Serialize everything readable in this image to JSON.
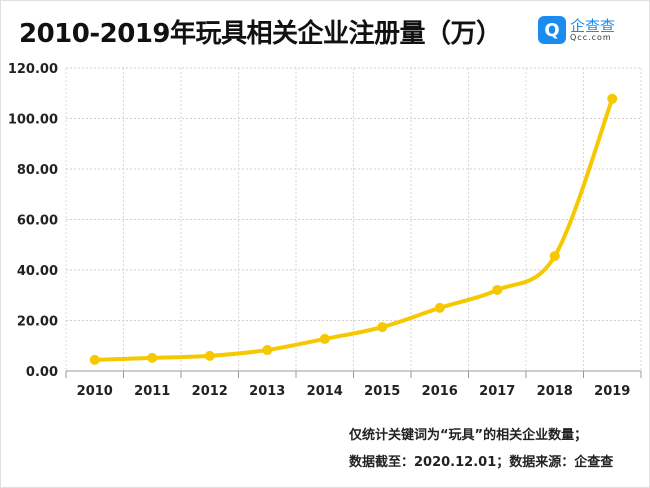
{
  "chart_data": {
    "type": "line",
    "title": "2010-2019年玩具相关企业注册量（万）",
    "categories": [
      "2010",
      "2011",
      "2012",
      "2013",
      "2014",
      "2015",
      "2016",
      "2017",
      "2018",
      "2019"
    ],
    "values": [
      4.4,
      5.2,
      6.0,
      8.3,
      12.7,
      17.4,
      25.0,
      32.1,
      45.5,
      107.8
    ],
    "ylim": [
      0,
      120
    ],
    "yticks": [
      "0.00",
      "20.00",
      "40.00",
      "60.00",
      "80.00",
      "100.00",
      "120.00"
    ],
    "grid": true,
    "line_color": "#f5c800",
    "smooth": true
  },
  "logo": {
    "cn": "企查查",
    "en": "Qcc.com"
  },
  "notes": [
    "仅统计关键词为“玩具”的相关企业数量；",
    "数据截至：2020.12.01；数据来源：企查查"
  ]
}
